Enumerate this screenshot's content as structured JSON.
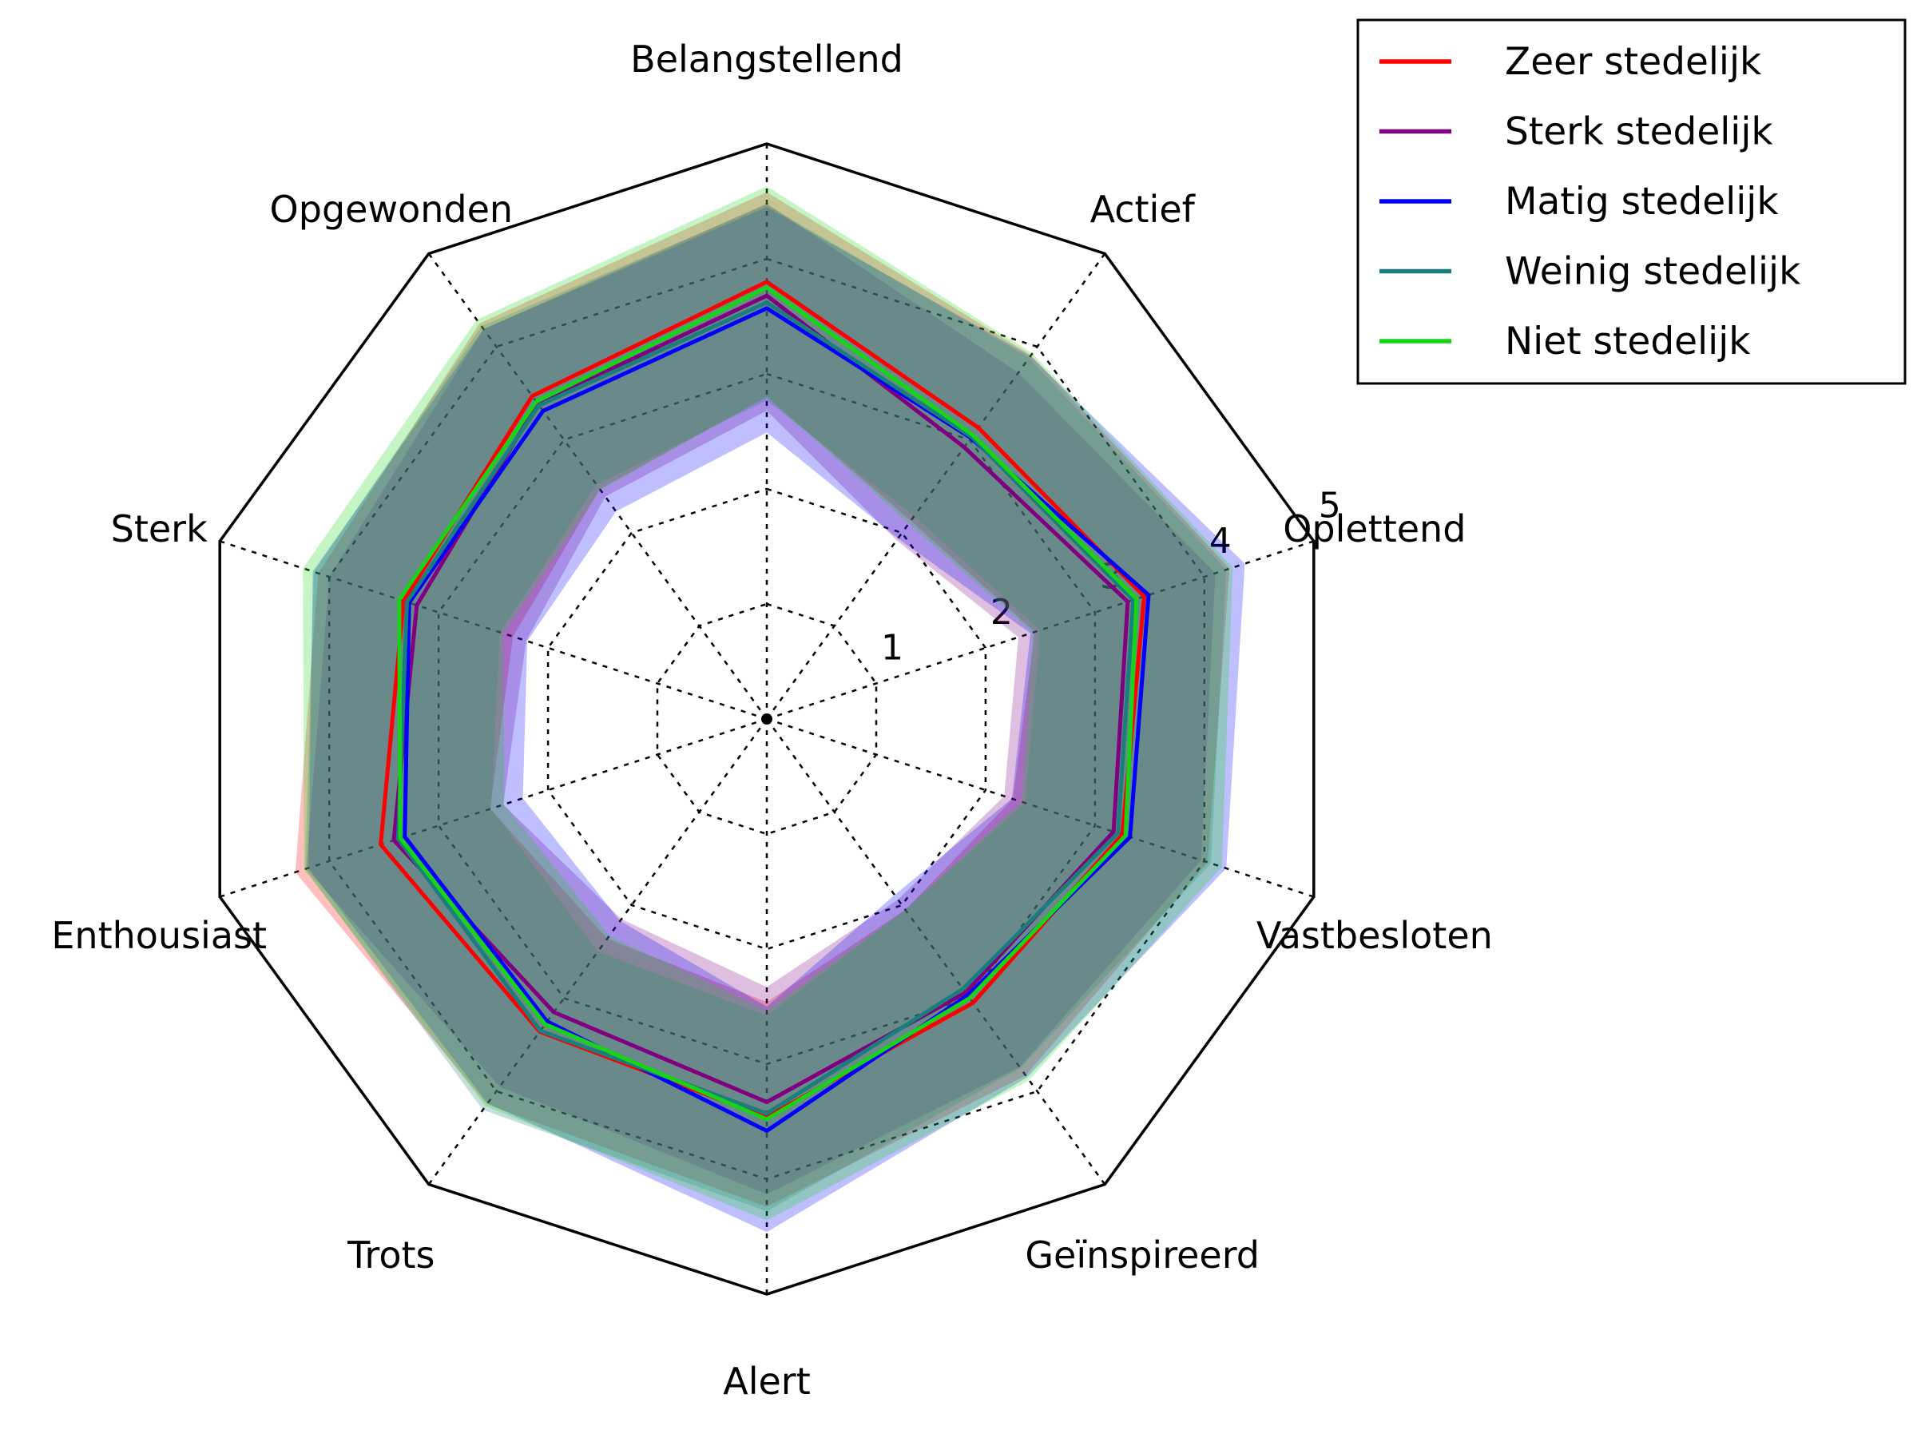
{
  "figure": {
    "background": "#ffffff",
    "frame_color": "#000000",
    "grid_style": "dotted",
    "text_color": "#000000"
  },
  "chart_data": {
    "type": "radar",
    "categories": [
      "Belangstellend",
      "Actief",
      "Oplettend",
      "Vastbesloten",
      "Geïnspireerd",
      "Alert",
      "Trots",
      "Enthousiast",
      "Sterk",
      "Opgewonden"
    ],
    "radial_ticks": [
      "1",
      "2",
      "3",
      "4",
      "5"
    ],
    "r_min": 0,
    "r_max": 5,
    "band_opacity": 0.25,
    "legend_position": "upper right",
    "series": [
      {
        "name": "Zeer stedelijk",
        "color": "#ff0000",
        "values": [
          3.8,
          3.13,
          3.45,
          3.25,
          3.05,
          3.46,
          3.36,
          3.53,
          3.32,
          3.47
        ],
        "band_lower": [
          2.8,
          2.13,
          2.45,
          2.25,
          2.05,
          2.46,
          2.36,
          2.53,
          2.32,
          2.47
        ],
        "band_upper": [
          4.58,
          3.91,
          4.23,
          4.03,
          3.83,
          4.24,
          4.14,
          4.31,
          4.1,
          4.25
        ]
      },
      {
        "name": "Sterk stedelijk",
        "color": "#800080",
        "values": [
          3.68,
          2.92,
          3.3,
          3.17,
          2.94,
          3.33,
          3.15,
          3.41,
          3.2,
          3.39
        ],
        "band_lower": [
          2.68,
          1.92,
          2.3,
          2.17,
          1.94,
          2.33,
          2.15,
          2.41,
          2.2,
          2.39
        ],
        "band_upper": [
          4.48,
          3.72,
          4.1,
          3.97,
          3.74,
          4.13,
          3.95,
          4.21,
          4.0,
          4.19
        ]
      },
      {
        "name": "Matig stedelijk",
        "color": "#0000ff",
        "values": [
          3.57,
          3.02,
          3.49,
          3.32,
          2.97,
          3.58,
          3.25,
          3.31,
          3.27,
          3.31
        ],
        "band_lower": [
          2.49,
          1.94,
          2.41,
          2.24,
          1.89,
          2.5,
          2.17,
          2.23,
          2.19,
          2.23
        ],
        "band_upper": [
          4.45,
          3.9,
          4.37,
          4.2,
          3.85,
          4.46,
          4.13,
          4.19,
          4.15,
          4.19
        ]
      },
      {
        "name": "Weinig stedelijk",
        "color": "#1a7e7c",
        "values": [
          3.62,
          3.03,
          3.35,
          3.21,
          2.9,
          3.43,
          3.35,
          3.37,
          3.29,
          3.37
        ],
        "band_lower": [
          2.77,
          2.18,
          2.5,
          2.36,
          2.05,
          2.58,
          2.5,
          2.52,
          2.44,
          2.52
        ],
        "band_upper": [
          4.47,
          3.88,
          4.2,
          4.06,
          3.75,
          4.28,
          4.2,
          4.22,
          4.14,
          4.22
        ]
      },
      {
        "name": "Niet stedelijk",
        "color": "#17d417",
        "values": [
          3.75,
          3.05,
          3.38,
          3.28,
          3.0,
          3.48,
          3.28,
          3.35,
          3.36,
          3.41
        ],
        "band_lower": [
          2.8,
          2.1,
          2.43,
          2.33,
          2.05,
          2.53,
          2.33,
          2.4,
          2.41,
          2.46
        ],
        "band_upper": [
          4.63,
          3.93,
          4.26,
          4.16,
          3.88,
          4.36,
          4.16,
          4.23,
          4.24,
          4.29
        ]
      }
    ]
  }
}
